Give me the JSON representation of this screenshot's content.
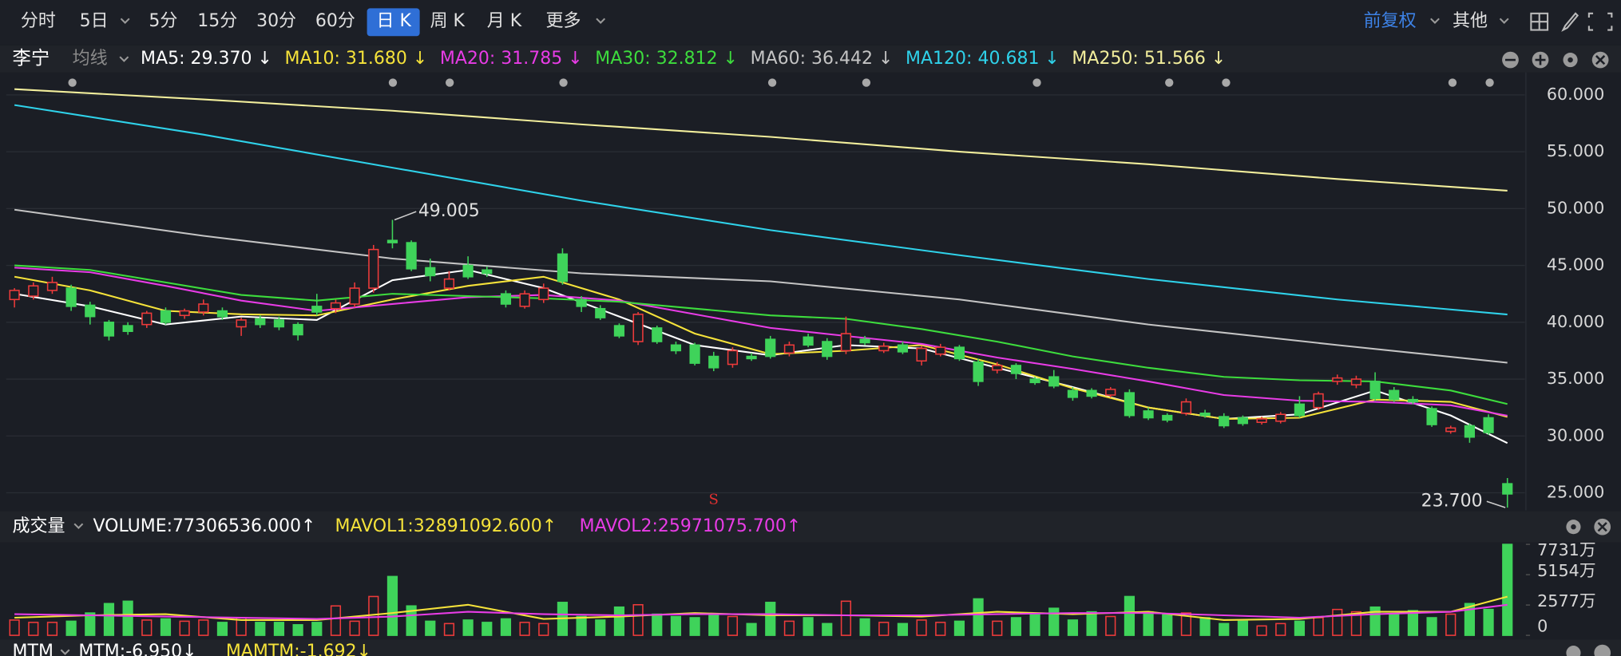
{
  "toolbar": {
    "periods": [
      "分时",
      "5日",
      "5分",
      "15分",
      "30分",
      "60分",
      "日 K",
      "周 K",
      "月 K",
      "更多"
    ],
    "right": [
      "前复权",
      "其他"
    ]
  },
  "chart_data": [
    {
      "type": "candlestick",
      "title": "李宁",
      "indicator": "均线",
      "up_color": "#ee3b3b",
      "down_color": "#3fd35a",
      "grid": true,
      "ylim": [
        23.55,
        61.8
      ],
      "yticks": [
        {
          "value": 60,
          "label": "60.000"
        },
        {
          "value": 55,
          "label": "55.000"
        },
        {
          "value": 50,
          "label": "50.000"
        },
        {
          "value": 45,
          "label": "45.000"
        },
        {
          "value": 40,
          "label": "40.000"
        },
        {
          "value": 35,
          "label": "35.000"
        },
        {
          "value": 30,
          "label": "30.000"
        },
        {
          "value": 25,
          "label": "25.000"
        }
      ],
      "ohlc": [
        [
          42.0,
          43.0,
          41.3,
          42.8
        ],
        [
          42.3,
          43.5,
          42.0,
          43.2
        ],
        [
          42.8,
          44.0,
          42.5,
          43.5
        ],
        [
          43.0,
          43.3,
          41.0,
          41.4
        ],
        [
          41.5,
          41.8,
          39.8,
          40.5
        ],
        [
          40.0,
          40.2,
          38.4,
          38.8
        ],
        [
          39.7,
          40.0,
          38.9,
          39.2
        ],
        [
          39.8,
          41.0,
          39.5,
          40.8
        ],
        [
          41.0,
          41.3,
          39.8,
          40.0
        ],
        [
          40.6,
          41.2,
          40.3,
          41.0
        ],
        [
          40.9,
          42.0,
          40.6,
          41.6
        ],
        [
          41.0,
          41.3,
          40.2,
          40.5
        ],
        [
          39.6,
          40.4,
          38.8,
          40.2
        ],
        [
          40.3,
          40.6,
          39.5,
          39.8
        ],
        [
          40.2,
          40.5,
          39.3,
          39.6
        ],
        [
          39.8,
          40.0,
          38.4,
          38.9
        ],
        [
          41.4,
          42.5,
          40.6,
          40.9
        ],
        [
          41.2,
          42.0,
          40.8,
          41.7
        ],
        [
          41.6,
          43.5,
          41.3,
          43.0
        ],
        [
          43.0,
          46.8,
          42.6,
          46.4
        ],
        [
          47.2,
          49.005,
          46.5,
          47.0
        ],
        [
          47.0,
          47.2,
          44.5,
          44.7
        ],
        [
          44.8,
          45.6,
          43.6,
          44.1
        ],
        [
          43.0,
          44.5,
          42.8,
          43.8
        ],
        [
          45.0,
          45.8,
          43.8,
          44.0
        ],
        [
          44.6,
          44.9,
          44.0,
          44.3
        ],
        [
          42.5,
          42.8,
          41.3,
          41.6
        ],
        [
          41.4,
          42.8,
          41.2,
          42.5
        ],
        [
          42.0,
          43.4,
          41.7,
          43.0
        ],
        [
          46.0,
          46.5,
          43.3,
          43.6
        ],
        [
          42.0,
          42.3,
          40.9,
          41.4
        ],
        [
          41.2,
          41.5,
          40.2,
          40.4
        ],
        [
          39.7,
          39.9,
          38.6,
          38.8
        ],
        [
          38.3,
          40.9,
          38.0,
          40.7
        ],
        [
          39.5,
          39.7,
          38.1,
          38.3
        ],
        [
          38.0,
          38.3,
          37.2,
          37.5
        ],
        [
          38.0,
          38.2,
          36.2,
          36.4
        ],
        [
          37.0,
          37.4,
          35.7,
          36.0
        ],
        [
          36.3,
          37.8,
          36.0,
          37.5
        ],
        [
          37.0,
          37.3,
          36.6,
          36.8
        ],
        [
          38.5,
          38.8,
          36.8,
          37.0
        ],
        [
          37.3,
          38.3,
          37.0,
          38.0
        ],
        [
          38.7,
          39.0,
          37.8,
          38.0
        ],
        [
          38.3,
          38.6,
          36.7,
          37.0
        ],
        [
          37.5,
          40.5,
          37.2,
          39.0
        ],
        [
          38.5,
          38.8,
          38.0,
          38.2
        ],
        [
          37.5,
          38.2,
          37.3,
          37.9
        ],
        [
          38.0,
          38.3,
          37.2,
          37.4
        ],
        [
          36.6,
          37.9,
          36.2,
          37.7
        ],
        [
          37.2,
          38.1,
          37.0,
          37.8
        ],
        [
          37.8,
          38.0,
          36.6,
          36.8
        ],
        [
          36.5,
          36.8,
          34.4,
          34.8
        ],
        [
          35.8,
          36.5,
          35.5,
          36.2
        ],
        [
          36.2,
          36.4,
          35.0,
          35.5
        ],
        [
          35.0,
          35.2,
          34.5,
          34.7
        ],
        [
          35.2,
          35.8,
          34.2,
          34.4
        ],
        [
          34.0,
          34.3,
          33.1,
          33.4
        ],
        [
          34.0,
          34.2,
          33.3,
          33.5
        ],
        [
          33.6,
          34.3,
          33.4,
          34.1
        ],
        [
          33.8,
          34.1,
          31.6,
          31.8
        ],
        [
          32.2,
          32.5,
          31.4,
          31.6
        ],
        [
          31.8,
          32.0,
          31.2,
          31.4
        ],
        [
          32.0,
          33.3,
          31.8,
          33.0
        ],
        [
          32.0,
          32.3,
          31.6,
          31.8
        ],
        [
          31.7,
          32.0,
          30.7,
          30.9
        ],
        [
          31.6,
          31.8,
          30.9,
          31.1
        ],
        [
          31.2,
          31.7,
          31.0,
          31.5
        ],
        [
          31.3,
          32.1,
          31.1,
          31.9
        ],
        [
          32.8,
          33.5,
          31.6,
          31.8
        ],
        [
          32.5,
          33.9,
          32.3,
          33.7
        ],
        [
          34.8,
          35.4,
          34.5,
          35.1
        ],
        [
          34.5,
          35.3,
          34.2,
          35.0
        ],
        [
          34.8,
          35.6,
          33.1,
          33.3
        ],
        [
          34.0,
          34.3,
          33.0,
          33.2
        ],
        [
          33.2,
          33.5,
          32.8,
          33.0
        ],
        [
          32.4,
          32.6,
          30.8,
          31.0
        ],
        [
          30.4,
          30.9,
          30.2,
          30.7
        ],
        [
          30.9,
          31.1,
          29.4,
          29.9
        ],
        [
          31.6,
          31.9,
          30.1,
          30.3
        ],
        [
          25.8,
          26.3,
          23.7,
          24.9
        ]
      ],
      "series": [
        {
          "name": "MA5: 29.370 ↓",
          "color": "#ffffff",
          "x": [
            0,
            4,
            8,
            12,
            16,
            20,
            24,
            28,
            32,
            36,
            40,
            44,
            48,
            52,
            56,
            60,
            64,
            68,
            72,
            76,
            79
          ],
          "values": [
            42.5,
            41.4,
            39.8,
            40.5,
            40.2,
            43.7,
            44.6,
            43.0,
            40.5,
            38.0,
            37.1,
            38.0,
            37.7,
            36.0,
            34.3,
            32.5,
            31.5,
            31.9,
            34.0,
            31.8,
            29.37
          ]
        },
        {
          "name": "MA10: 31.680 ↓",
          "color": "#f5e23a",
          "x": [
            0,
            4,
            8,
            12,
            16,
            20,
            24,
            28,
            32,
            36,
            40,
            44,
            48,
            52,
            56,
            60,
            64,
            68,
            72,
            76,
            79
          ],
          "values": [
            44.0,
            42.8,
            41.0,
            40.7,
            40.6,
            42.0,
            43.2,
            44.0,
            42.0,
            39.0,
            37.2,
            37.5,
            38.0,
            36.3,
            34.2,
            32.5,
            31.5,
            31.6,
            33.2,
            33.0,
            31.68
          ]
        },
        {
          "name": "MA20: 31.785 ↓",
          "color": "#e83ce6",
          "x": [
            0,
            4,
            8,
            12,
            16,
            20,
            24,
            28,
            32,
            36,
            40,
            44,
            48,
            52,
            56,
            60,
            64,
            68,
            72,
            76,
            79
          ],
          "values": [
            44.8,
            44.4,
            43.2,
            41.9,
            41.0,
            41.6,
            42.2,
            42.4,
            41.9,
            40.7,
            39.5,
            38.8,
            38.1,
            36.9,
            35.9,
            34.8,
            33.6,
            33.1,
            33.0,
            32.7,
            31.785
          ]
        },
        {
          "name": "MA30: 32.812 ↓",
          "color": "#3ddc3d",
          "x": [
            0,
            4,
            8,
            12,
            16,
            20,
            24,
            28,
            32,
            36,
            40,
            44,
            48,
            52,
            56,
            60,
            64,
            68,
            72,
            76,
            79
          ],
          "values": [
            45.0,
            44.6,
            43.5,
            42.4,
            41.9,
            42.5,
            42.3,
            42.1,
            41.8,
            41.2,
            40.6,
            40.3,
            39.4,
            38.3,
            37.0,
            36.0,
            35.2,
            34.9,
            34.8,
            34.0,
            32.812
          ]
        },
        {
          "name": "MA60: 36.442 ↓",
          "color": "#c4c4c4",
          "x": [
            0,
            10,
            20,
            30,
            40,
            50,
            60,
            70,
            79
          ],
          "values": [
            49.9,
            47.6,
            45.6,
            44.3,
            43.6,
            42.0,
            39.8,
            38.0,
            36.442
          ]
        },
        {
          "name": "MA120: 40.681 ↓",
          "color": "#2fd2ea",
          "x": [
            0,
            10,
            20,
            30,
            40,
            50,
            60,
            70,
            79
          ],
          "values": [
            59.1,
            56.5,
            53.6,
            50.7,
            48.1,
            45.9,
            43.8,
            42.0,
            40.681
          ]
        },
        {
          "name": "MA250: 51.566 ↓",
          "color": "#f2ee9c",
          "x": [
            0,
            10,
            20,
            30,
            40,
            50,
            60,
            70,
            79
          ],
          "values": [
            60.5,
            59.6,
            58.6,
            57.4,
            56.3,
            55.0,
            53.9,
            52.6,
            51.566
          ]
        }
      ],
      "annotations": [
        {
          "x": 20,
          "value": 49.005,
          "label": "49.005"
        },
        {
          "x": 79,
          "value": 23.7,
          "label": "23.700"
        }
      ],
      "signals": [
        {
          "x": 37,
          "label": "S"
        }
      ]
    },
    {
      "type": "bar",
      "title": "成交量",
      "name": "VOLUME:77306536.000↑",
      "ylim": [
        0,
        7900
      ],
      "yticks": [
        {
          "value": 7731,
          "label": "7731万"
        },
        {
          "value": 5154,
          "label": "5154万"
        },
        {
          "value": 2577,
          "label": "2577万"
        },
        0
      ],
      "values": [
        1300,
        1100,
        1100,
        1200,
        1900,
        2700,
        2900,
        1300,
        1400,
        1200,
        1300,
        1100,
        1500,
        1100,
        1100,
        900,
        1100,
        2500,
        1200,
        3300,
        5000,
        2500,
        1200,
        1000,
        1300,
        1100,
        1400,
        1100,
        1000,
        2800,
        1600,
        1300,
        2400,
        2600,
        1800,
        1600,
        1500,
        1800,
        1600,
        1000,
        2800,
        1200,
        1500,
        1000,
        2900,
        1400,
        1100,
        1000,
        1300,
        1100,
        1200,
        3100,
        1200,
        1500,
        1800,
        2300,
        1300,
        2000,
        1600,
        3300,
        2000,
        1800,
        1900,
        1500,
        1000,
        1200,
        800,
        1000,
        1200,
        1500,
        2200,
        2000,
        2400,
        1800,
        2100,
        1500,
        1800,
        2700,
        2200,
        7730.65
      ],
      "series": [
        {
          "name": "MAVOL1:32891092.600↑",
          "color": "#f5e23a",
          "x": [
            0,
            4,
            8,
            12,
            16,
            20,
            24,
            28,
            32,
            36,
            40,
            44,
            48,
            52,
            56,
            60,
            64,
            68,
            72,
            76,
            79
          ],
          "values": [
            1500,
            1700,
            1800,
            1300,
            1300,
            1900,
            2600,
            1400,
            1600,
            1900,
            1700,
            1700,
            1600,
            2000,
            1800,
            2000,
            1300,
            1400,
            2000,
            2000,
            3289.1
          ]
        },
        {
          "name": "MAVOL2:25971075.700↑",
          "color": "#e83ce6",
          "x": [
            0,
            4,
            8,
            12,
            16,
            20,
            24,
            28,
            32,
            36,
            40,
            44,
            48,
            52,
            56,
            60,
            64,
            68,
            72,
            76,
            79
          ],
          "values": [
            1800,
            1700,
            1600,
            1500,
            1400,
            1600,
            2000,
            1800,
            1700,
            1800,
            1800,
            1700,
            1700,
            1800,
            1900,
            1900,
            1700,
            1500,
            1800,
            2000,
            2597.1
          ]
        }
      ]
    },
    {
      "type": "line",
      "title": "MTM",
      "series": [
        {
          "name": "MTM:-6.950↓",
          "color": "#ffffff"
        },
        {
          "name": "MAMTM:-1.692↓",
          "color": "#f5e23a"
        }
      ]
    }
  ]
}
